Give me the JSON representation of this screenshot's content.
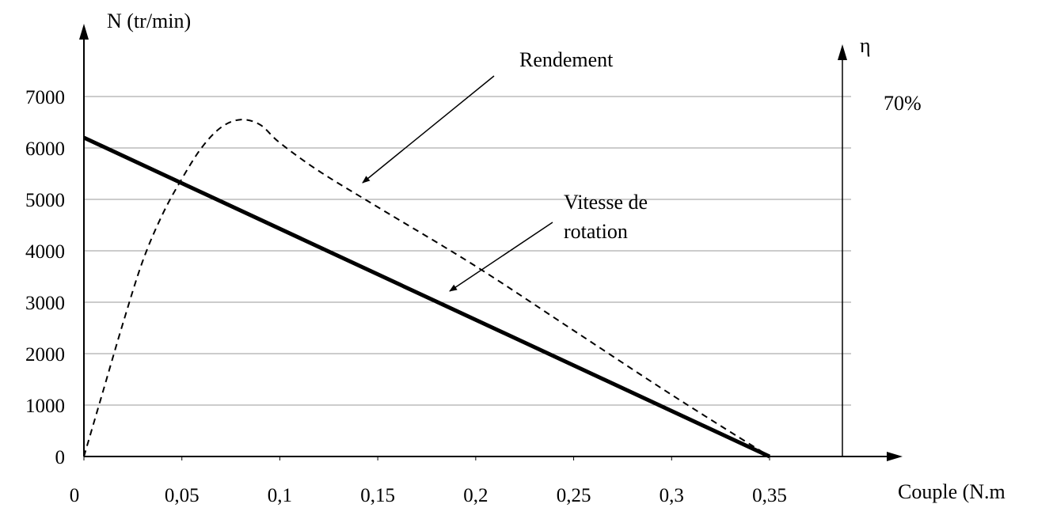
{
  "chart_data": {
    "type": "line",
    "title": "",
    "xlabel": "Couple (N.m",
    "ylabel": "N (tr/min)",
    "y2label": "η",
    "y2_marker": "70%",
    "xlim": [
      0,
      0.385
    ],
    "ylim": [
      0,
      7000
    ],
    "x_ticks": [
      0,
      0.05,
      0.1,
      0.15,
      0.2,
      0.25,
      0.3,
      0.35
    ],
    "x_tick_labels": [
      "0",
      "0,05",
      "0,1",
      "0,15",
      "0,2",
      "0,25",
      "0,3",
      "0,35"
    ],
    "y_ticks": [
      0,
      1000,
      2000,
      3000,
      4000,
      5000,
      6000,
      7000
    ],
    "y_tick_labels": [
      "0",
      "1000",
      "2000",
      "3000",
      "4000",
      "5000",
      "6000",
      "7000"
    ],
    "grid": "horizontal",
    "series": [
      {
        "name": "Vitesse de rotation",
        "style": "solid-thick",
        "color": "#000000",
        "x": [
          0,
          0.35
        ],
        "y": [
          6200,
          0
        ]
      },
      {
        "name": "Rendement",
        "style": "dashed",
        "color": "#000000",
        "x": [
          0,
          0.01,
          0.02,
          0.03,
          0.04,
          0.05,
          0.06,
          0.07,
          0.08,
          0.09,
          0.1,
          0.12,
          0.15,
          0.2,
          0.25,
          0.3,
          0.35
        ],
        "y": [
          0,
          1300,
          2600,
          3800,
          4700,
          5400,
          6000,
          6400,
          6550,
          6450,
          6100,
          5550,
          4850,
          3700,
          2450,
          1200,
          0
        ]
      }
    ],
    "annotations": [
      {
        "text": "Rendement",
        "series": "Rendement"
      },
      {
        "text": "Vitesse de\nrotation",
        "lines": [
          "Vitesse de",
          "rotation"
        ],
        "series": "Vitesse de rotation"
      }
    ]
  }
}
